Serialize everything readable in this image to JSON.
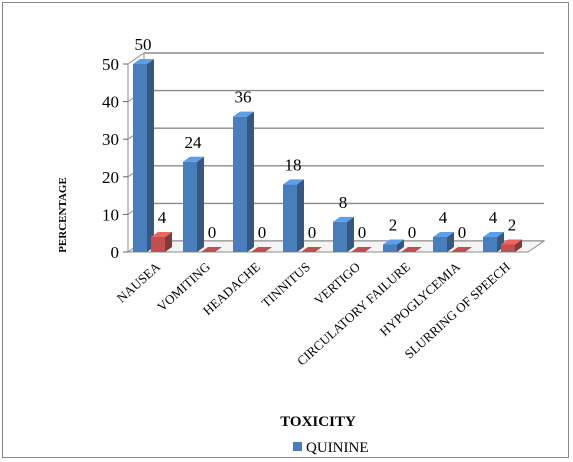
{
  "chart_data": {
    "type": "bar",
    "title": "",
    "xlabel": "TOXICITY",
    "ylabel": "PERCENTAGE",
    "ylim": [
      0,
      50
    ],
    "yticks": [
      0,
      10,
      20,
      30,
      40,
      50
    ],
    "categories": [
      "NAUSEA",
      "VOMITING",
      "HEADACHE",
      "TINNITUS",
      "VERTIGO",
      "CIRCULATORY FAILURE",
      "HYPOGLYCEMIA",
      "SLURRING OF SPEECH"
    ],
    "series": [
      {
        "name": "QUININE",
        "values": [
          50,
          24,
          36,
          18,
          8,
          2,
          4,
          4
        ],
        "color": "#4a7ebb"
      },
      {
        "values": [
          4,
          0,
          0,
          0,
          0,
          0,
          0,
          2
        ],
        "color": "#c0504d"
      }
    ],
    "grid": true,
    "three_d": true,
    "legend_position": "bottom"
  }
}
